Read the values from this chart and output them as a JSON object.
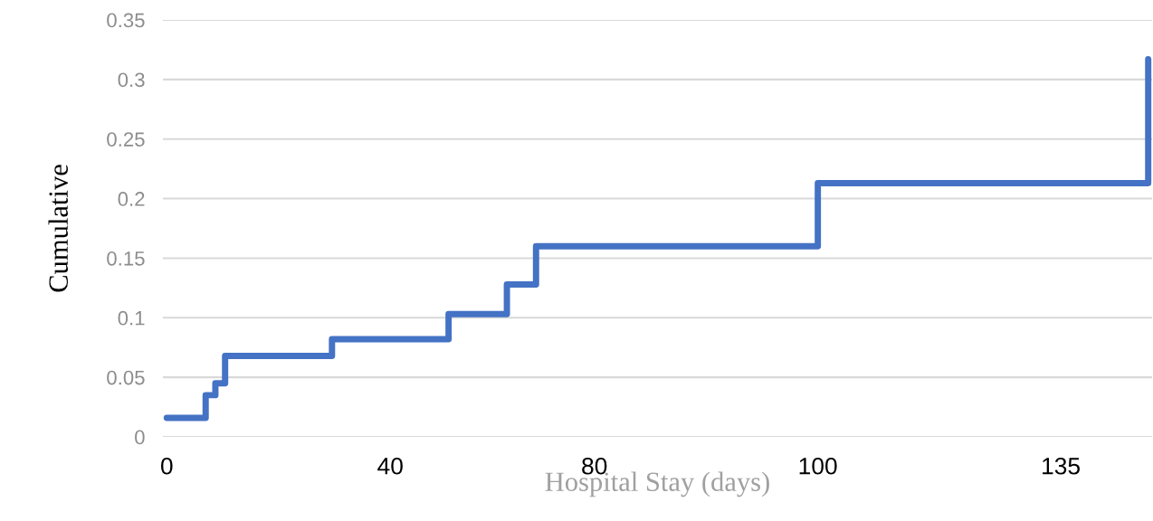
{
  "chart_data": {
    "type": "step",
    "xlabel": "Hospital Stay (days)",
    "ylabel": "Cumulative",
    "categories": [
      "0",
      null,
      null,
      null,
      null,
      null,
      null,
      null,
      null,
      null,
      null,
      null,
      null,
      null,
      null,
      null,
      null,
      null,
      null,
      null,
      null,
      null,
      null,
      "40",
      null,
      null,
      null,
      null,
      null,
      null,
      null,
      null,
      null,
      null,
      null,
      null,
      null,
      null,
      null,
      null,
      null,
      null,
      null,
      null,
      "80",
      null,
      null,
      null,
      null,
      null,
      null,
      null,
      null,
      null,
      null,
      null,
      null,
      null,
      null,
      null,
      null,
      null,
      null,
      null,
      null,
      null,
      null,
      "100",
      null,
      null,
      null,
      null,
      null,
      null,
      null,
      null,
      null,
      null,
      null,
      null,
      null,
      null,
      null,
      null,
      null,
      null,
      null,
      null,
      null,
      null,
      null,
      null,
      "135",
      null,
      null,
      null,
      null,
      null,
      null,
      null,
      null,
      null
    ],
    "series": [
      {
        "color": "#4472c4",
        "values": [
          0.016,
          0.016,
          0.016,
          0.016,
          0.035,
          0.045,
          0.068,
          0.068,
          0.068,
          0.068,
          0.068,
          0.068,
          0.068,
          0.068,
          0.068,
          0.068,
          0.068,
          0.082,
          0.082,
          0.082,
          0.082,
          0.082,
          0.082,
          0.082,
          0.082,
          0.082,
          0.082,
          0.082,
          0.082,
          0.103,
          0.103,
          0.103,
          0.103,
          0.103,
          0.103,
          0.128,
          0.128,
          0.128,
          0.16,
          0.16,
          0.16,
          0.16,
          0.16,
          0.16,
          0.16,
          0.16,
          0.16,
          0.16,
          0.16,
          0.16,
          0.16,
          0.16,
          0.16,
          0.16,
          0.16,
          0.16,
          0.16,
          0.16,
          0.16,
          0.16,
          0.16,
          0.16,
          0.16,
          0.16,
          0.16,
          0.16,
          0.16,
          0.213,
          0.213,
          0.213,
          0.213,
          0.213,
          0.213,
          0.213,
          0.213,
          0.213,
          0.213,
          0.213,
          0.213,
          0.213,
          0.213,
          0.213,
          0.213,
          0.213,
          0.213,
          0.213,
          0.213,
          0.213,
          0.213,
          0.213,
          0.213,
          0.213,
          0.213,
          0.213,
          0.213,
          0.213,
          0.213,
          0.213,
          0.213,
          0.213,
          0.213,
          0.317
        ]
      }
    ],
    "ylim": [
      0,
      0.35
    ],
    "yticks": [
      0,
      0.05,
      0.1,
      0.15,
      0.2,
      0.25,
      0.3,
      0.35
    ],
    "grid": "y"
  }
}
